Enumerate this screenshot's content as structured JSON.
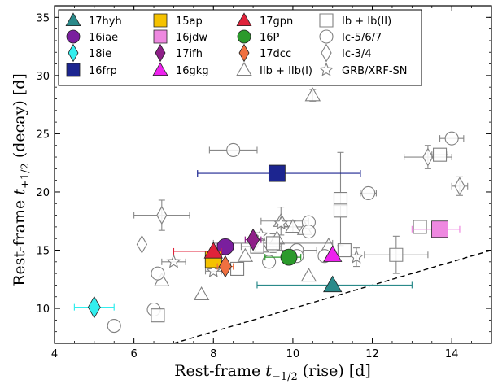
{
  "chart_data": {
    "type": "scatter",
    "xlabel": "Rest-frame t−½ (rise) [d]",
    "ylabel": "Rest-frame t+½ (decay) [d]",
    "xlabel_parts": {
      "pre": "Rest-frame ",
      "var": "t",
      "sub": "−1/2",
      "post": " (rise) [d]"
    },
    "ylabel_parts": {
      "pre": "Rest-frame ",
      "var": "t",
      "sub": "+1/2",
      "post": " (decay) [d]"
    },
    "xlim": [
      4,
      15
    ],
    "ylim": [
      7,
      36
    ],
    "xticks": [
      4,
      6,
      8,
      10,
      12,
      14
    ],
    "yticks": [
      10,
      15,
      20,
      25,
      30,
      35
    ],
    "grid": false,
    "legend_position": "top",
    "reference_line": {
      "style": "dashed",
      "color": "#000000",
      "x": [
        7,
        15
      ],
      "y": [
        7,
        15
      ]
    },
    "highlighted": [
      {
        "name": "17hyh",
        "marker": "triangle",
        "color": "#2a8a8a",
        "x": 11.0,
        "y": 12.0,
        "xerr": [
          1.9,
          2.0
        ],
        "yerr": [
          0,
          0
        ],
        "err_color": "#2a8a8a"
      },
      {
        "name": "16iae",
        "marker": "circle",
        "color": "#7a1f9e",
        "x": 8.3,
        "y": 15.3,
        "xerr": [
          0.2,
          0.2
        ],
        "yerr": [
          0.3,
          0.3
        ],
        "err_color": "#7a1f9e"
      },
      {
        "name": "18ie",
        "marker": "diamond",
        "color": "#33eeee",
        "x": 5.0,
        "y": 10.1,
        "xerr": [
          0.5,
          0.5
        ],
        "yerr": [
          0,
          0
        ],
        "err_color": "#33eeee"
      },
      {
        "name": "16frp",
        "marker": "square",
        "color": "#1c2590",
        "x": 9.6,
        "y": 21.6,
        "xerr": [
          2.0,
          2.1
        ],
        "yerr": [
          0,
          0
        ],
        "err_color": "#1c2590"
      },
      {
        "name": "15ap",
        "marker": "square",
        "color": "#f5c200",
        "x": 8.0,
        "y": 14.2,
        "xerr": [
          0.2,
          0.2
        ],
        "yerr": [
          0.3,
          0.3
        ],
        "err_color": "#c29a00"
      },
      {
        "name": "16jdw",
        "marker": "square",
        "color": "#ee88e0",
        "x": 13.7,
        "y": 16.8,
        "xerr": [
          0.7,
          0.5
        ],
        "yerr": [
          0,
          0
        ],
        "err_color": "#ee88e0"
      },
      {
        "name": "17ifh",
        "marker": "diamond",
        "color": "#8e1f88",
        "x": 9.0,
        "y": 15.9,
        "xerr": [
          0.2,
          0.2
        ],
        "yerr": [
          0.3,
          0.3
        ],
        "err_color": "#8e1f88"
      },
      {
        "name": "16gkg",
        "marker": "triangle",
        "color": "#ee22ee",
        "x": 11.0,
        "y": 14.6,
        "xerr": [
          0,
          0
        ],
        "yerr": [
          0,
          0
        ],
        "err_color": "#ee22ee"
      },
      {
        "name": "17gpn",
        "marker": "triangle",
        "color": "#e0223a",
        "x": 8.0,
        "y": 14.9,
        "xerr": [
          1.0,
          0.2
        ],
        "yerr": [
          0.3,
          0.3
        ],
        "err_color": "#e0223a"
      },
      {
        "name": "16P",
        "marker": "circle",
        "color": "#2b9a2b",
        "x": 9.9,
        "y": 14.4,
        "xerr": [
          0.6,
          0.3
        ],
        "yerr": [
          0.6,
          0.5
        ],
        "err_color": "#2b9a2b"
      },
      {
        "name": "17dcc",
        "marker": "diamond",
        "color": "#f07040",
        "x": 8.3,
        "y": 13.6,
        "xerr": [
          0.2,
          0.2
        ],
        "yerr": [
          0.4,
          0.4
        ],
        "err_color": "#f07040"
      }
    ],
    "comparison": [
      {
        "name": "IIb + IIb(I)",
        "marker": "triangle",
        "color": "#808080",
        "points": [
          {
            "x": 10.5,
            "y": 28.3,
            "xerr": [
              0,
              0
            ],
            "yerr": [
              0.5,
              0.5
            ]
          },
          {
            "x": 6.7,
            "y": 12.4,
            "xerr": [
              0,
              0
            ],
            "yerr": [
              0,
              0
            ]
          },
          {
            "x": 7.7,
            "y": 11.2,
            "xerr": [
              0,
              0
            ],
            "yerr": [
              0,
              0
            ]
          },
          {
            "x": 9.7,
            "y": 17.5,
            "xerr": [
              0.5,
              0.7
            ],
            "yerr": [
              1.2,
              1.2
            ]
          },
          {
            "x": 10.0,
            "y": 17.0,
            "xerr": [
              0.3,
              0.3
            ],
            "yerr": [
              0.5,
              0.5
            ]
          },
          {
            "x": 10.3,
            "y": 16.8,
            "xerr": [
              0,
              0
            ],
            "yerr": [
              0,
              0
            ]
          },
          {
            "x": 9.6,
            "y": 16.0,
            "xerr": [
              0,
              0
            ],
            "yerr": [
              0,
              0
            ]
          },
          {
            "x": 9.2,
            "y": 15.3,
            "xerr": [
              0.5,
              0.5
            ],
            "yerr": [
              0,
              0
            ]
          },
          {
            "x": 8.8,
            "y": 14.5,
            "xerr": [
              0,
              0
            ],
            "yerr": [
              0,
              0
            ]
          },
          {
            "x": 10.9,
            "y": 15.4,
            "xerr": [
              0,
              0
            ],
            "yerr": [
              0,
              0
            ]
          },
          {
            "x": 10.4,
            "y": 12.8,
            "xerr": [
              0,
              0
            ],
            "yerr": [
              0,
              0
            ]
          },
          {
            "x": 8.0,
            "y": 14.4,
            "xerr": [
              0,
              0
            ],
            "yerr": [
              0,
              0
            ]
          }
        ]
      },
      {
        "name": "Ic-5/6/7",
        "marker": "circle",
        "color": "#808080",
        "points": [
          {
            "x": 8.5,
            "y": 23.6,
            "xerr": [
              0.6,
              0.6
            ],
            "yerr": [
              0,
              0
            ]
          },
          {
            "x": 14.0,
            "y": 24.6,
            "xerr": [
              0.3,
              0.3
            ],
            "yerr": [
              0,
              0
            ]
          },
          {
            "x": 11.9,
            "y": 19.9,
            "xerr": [
              0.2,
              0.2
            ],
            "yerr": [
              0,
              0
            ]
          },
          {
            "x": 6.6,
            "y": 13.0,
            "xerr": [
              0,
              0
            ],
            "yerr": [
              0,
              0
            ]
          },
          {
            "x": 6.5,
            "y": 9.9,
            "xerr": [
              0,
              0
            ],
            "yerr": [
              0,
              0
            ]
          },
          {
            "x": 5.5,
            "y": 8.5,
            "xerr": [
              0,
              0
            ],
            "yerr": [
              0,
              0
            ]
          },
          {
            "x": 10.1,
            "y": 15.0,
            "xerr": [
              0.5,
              0.5
            ],
            "yerr": [
              0,
              0
            ]
          },
          {
            "x": 10.4,
            "y": 17.4,
            "xerr": [
              0,
              0
            ],
            "yerr": [
              0,
              0
            ]
          },
          {
            "x": 10.4,
            "y": 16.6,
            "xerr": [
              0,
              0
            ],
            "yerr": [
              0,
              0
            ]
          },
          {
            "x": 9.4,
            "y": 14.0,
            "xerr": [
              0,
              0
            ],
            "yerr": [
              0,
              0
            ]
          },
          {
            "x": 10.1,
            "y": 14.5,
            "xerr": [
              0,
              0
            ],
            "yerr": [
              0,
              0
            ]
          },
          {
            "x": 10.8,
            "y": 14.5,
            "xerr": [
              0,
              0
            ],
            "yerr": [
              0,
              0
            ]
          }
        ]
      },
      {
        "name": "Ic-3/4",
        "marker": "diamond",
        "color": "#808080",
        "points": [
          {
            "x": 6.2,
            "y": 15.5,
            "xerr": [
              0,
              0
            ],
            "yerr": [
              0,
              0
            ]
          },
          {
            "x": 6.7,
            "y": 18.0,
            "xerr": [
              0.7,
              0.7
            ],
            "yerr": [
              1.3,
              1.3
            ]
          },
          {
            "x": 13.4,
            "y": 23.0,
            "xerr": [
              0.6,
              0.6
            ],
            "yerr": [
              1.0,
              1.0
            ]
          },
          {
            "x": 14.2,
            "y": 20.5,
            "xerr": [
              0.2,
              0.2
            ],
            "yerr": [
              0.8,
              0.8
            ]
          }
        ]
      },
      {
        "name": "Ib + Ib(II)",
        "marker": "square",
        "color": "#808080",
        "points": [
          {
            "x": 13.7,
            "y": 23.2,
            "xerr": [
              0.2,
              0.2
            ],
            "yerr": [
              0,
              0
            ]
          },
          {
            "x": 11.2,
            "y": 19.4,
            "xerr": [
              0,
              0
            ],
            "yerr": [
              4.0,
              4.0
            ]
          },
          {
            "x": 11.2,
            "y": 18.4,
            "xerr": [
              0,
              0
            ],
            "yerr": [
              0,
              0
            ]
          },
          {
            "x": 13.2,
            "y": 17.0,
            "xerr": [
              0,
              0
            ],
            "yerr": [
              0,
              0
            ]
          },
          {
            "x": 11.3,
            "y": 15.0,
            "xerr": [
              0,
              0
            ],
            "yerr": [
              0,
              0
            ]
          },
          {
            "x": 12.6,
            "y": 14.6,
            "xerr": [
              0.8,
              0.8
            ],
            "yerr": [
              1.6,
              1.6
            ]
          },
          {
            "x": 9.5,
            "y": 15.6,
            "xerr": [
              1.5,
              1.5
            ],
            "yerr": [
              0.8,
              0.8
            ]
          },
          {
            "x": 9.1,
            "y": 15.3,
            "xerr": [
              0,
              0
            ],
            "yerr": [
              0,
              0
            ]
          },
          {
            "x": 8.6,
            "y": 13.4,
            "xerr": [
              0,
              0
            ],
            "yerr": [
              0,
              0
            ]
          },
          {
            "x": 6.6,
            "y": 9.4,
            "xerr": [
              0,
              0
            ],
            "yerr": [
              0,
              0
            ]
          }
        ]
      },
      {
        "name": "GRB/XRF-SN",
        "marker": "star",
        "color": "#808080",
        "points": [
          {
            "x": 7.0,
            "y": 14.0,
            "xerr": [
              0.3,
              0.3
            ],
            "yerr": [
              0,
              0
            ]
          },
          {
            "x": 9.7,
            "y": 17.3,
            "xerr": [
              0,
              0
            ],
            "yerr": [
              0,
              0
            ]
          },
          {
            "x": 9.2,
            "y": 16.3,
            "xerr": [
              0,
              0
            ],
            "yerr": [
              0,
              0
            ]
          },
          {
            "x": 8.0,
            "y": 13.2,
            "xerr": [
              0.2,
              0.2
            ],
            "yerr": [
              0,
              0
            ]
          },
          {
            "x": 11.6,
            "y": 14.4,
            "xerr": [
              0,
              0
            ],
            "yerr": [
              0.8,
              0.8
            ]
          }
        ]
      }
    ],
    "legend": [
      {
        "label": "17hyh",
        "marker": "triangle",
        "color": "#2a8a8a",
        "filled": true
      },
      {
        "label": "16iae",
        "marker": "circle",
        "color": "#7a1f9e",
        "filled": true
      },
      {
        "label": "18ie",
        "marker": "diamond",
        "color": "#33eeee",
        "filled": true
      },
      {
        "label": "16frp",
        "marker": "square",
        "color": "#1c2590",
        "filled": true
      },
      {
        "label": "15ap",
        "marker": "square",
        "color": "#f5c200",
        "filled": true
      },
      {
        "label": "16jdw",
        "marker": "square",
        "color": "#ee88e0",
        "filled": true
      },
      {
        "label": "17ifh",
        "marker": "diamond",
        "color": "#8e1f88",
        "filled": true
      },
      {
        "label": "16gkg",
        "marker": "triangle",
        "color": "#ee22ee",
        "filled": true
      },
      {
        "label": "17gpn",
        "marker": "triangle",
        "color": "#e0223a",
        "filled": true
      },
      {
        "label": "16P",
        "marker": "circle",
        "color": "#2b9a2b",
        "filled": true
      },
      {
        "label": "17dcc",
        "marker": "diamond",
        "color": "#f07040",
        "filled": true
      },
      {
        "label": "IIb + IIb(I)",
        "marker": "triangle",
        "color": "#808080",
        "filled": false
      },
      {
        "label": "Ib + Ib(II)",
        "marker": "square",
        "color": "#808080",
        "filled": false
      },
      {
        "label": "Ic-5/6/7",
        "marker": "circle",
        "color": "#808080",
        "filled": false
      },
      {
        "label": "Ic-3/4",
        "marker": "diamond",
        "color": "#808080",
        "filled": false
      },
      {
        "label": "GRB/XRF-SN",
        "marker": "star",
        "color": "#808080",
        "filled": false
      }
    ]
  }
}
